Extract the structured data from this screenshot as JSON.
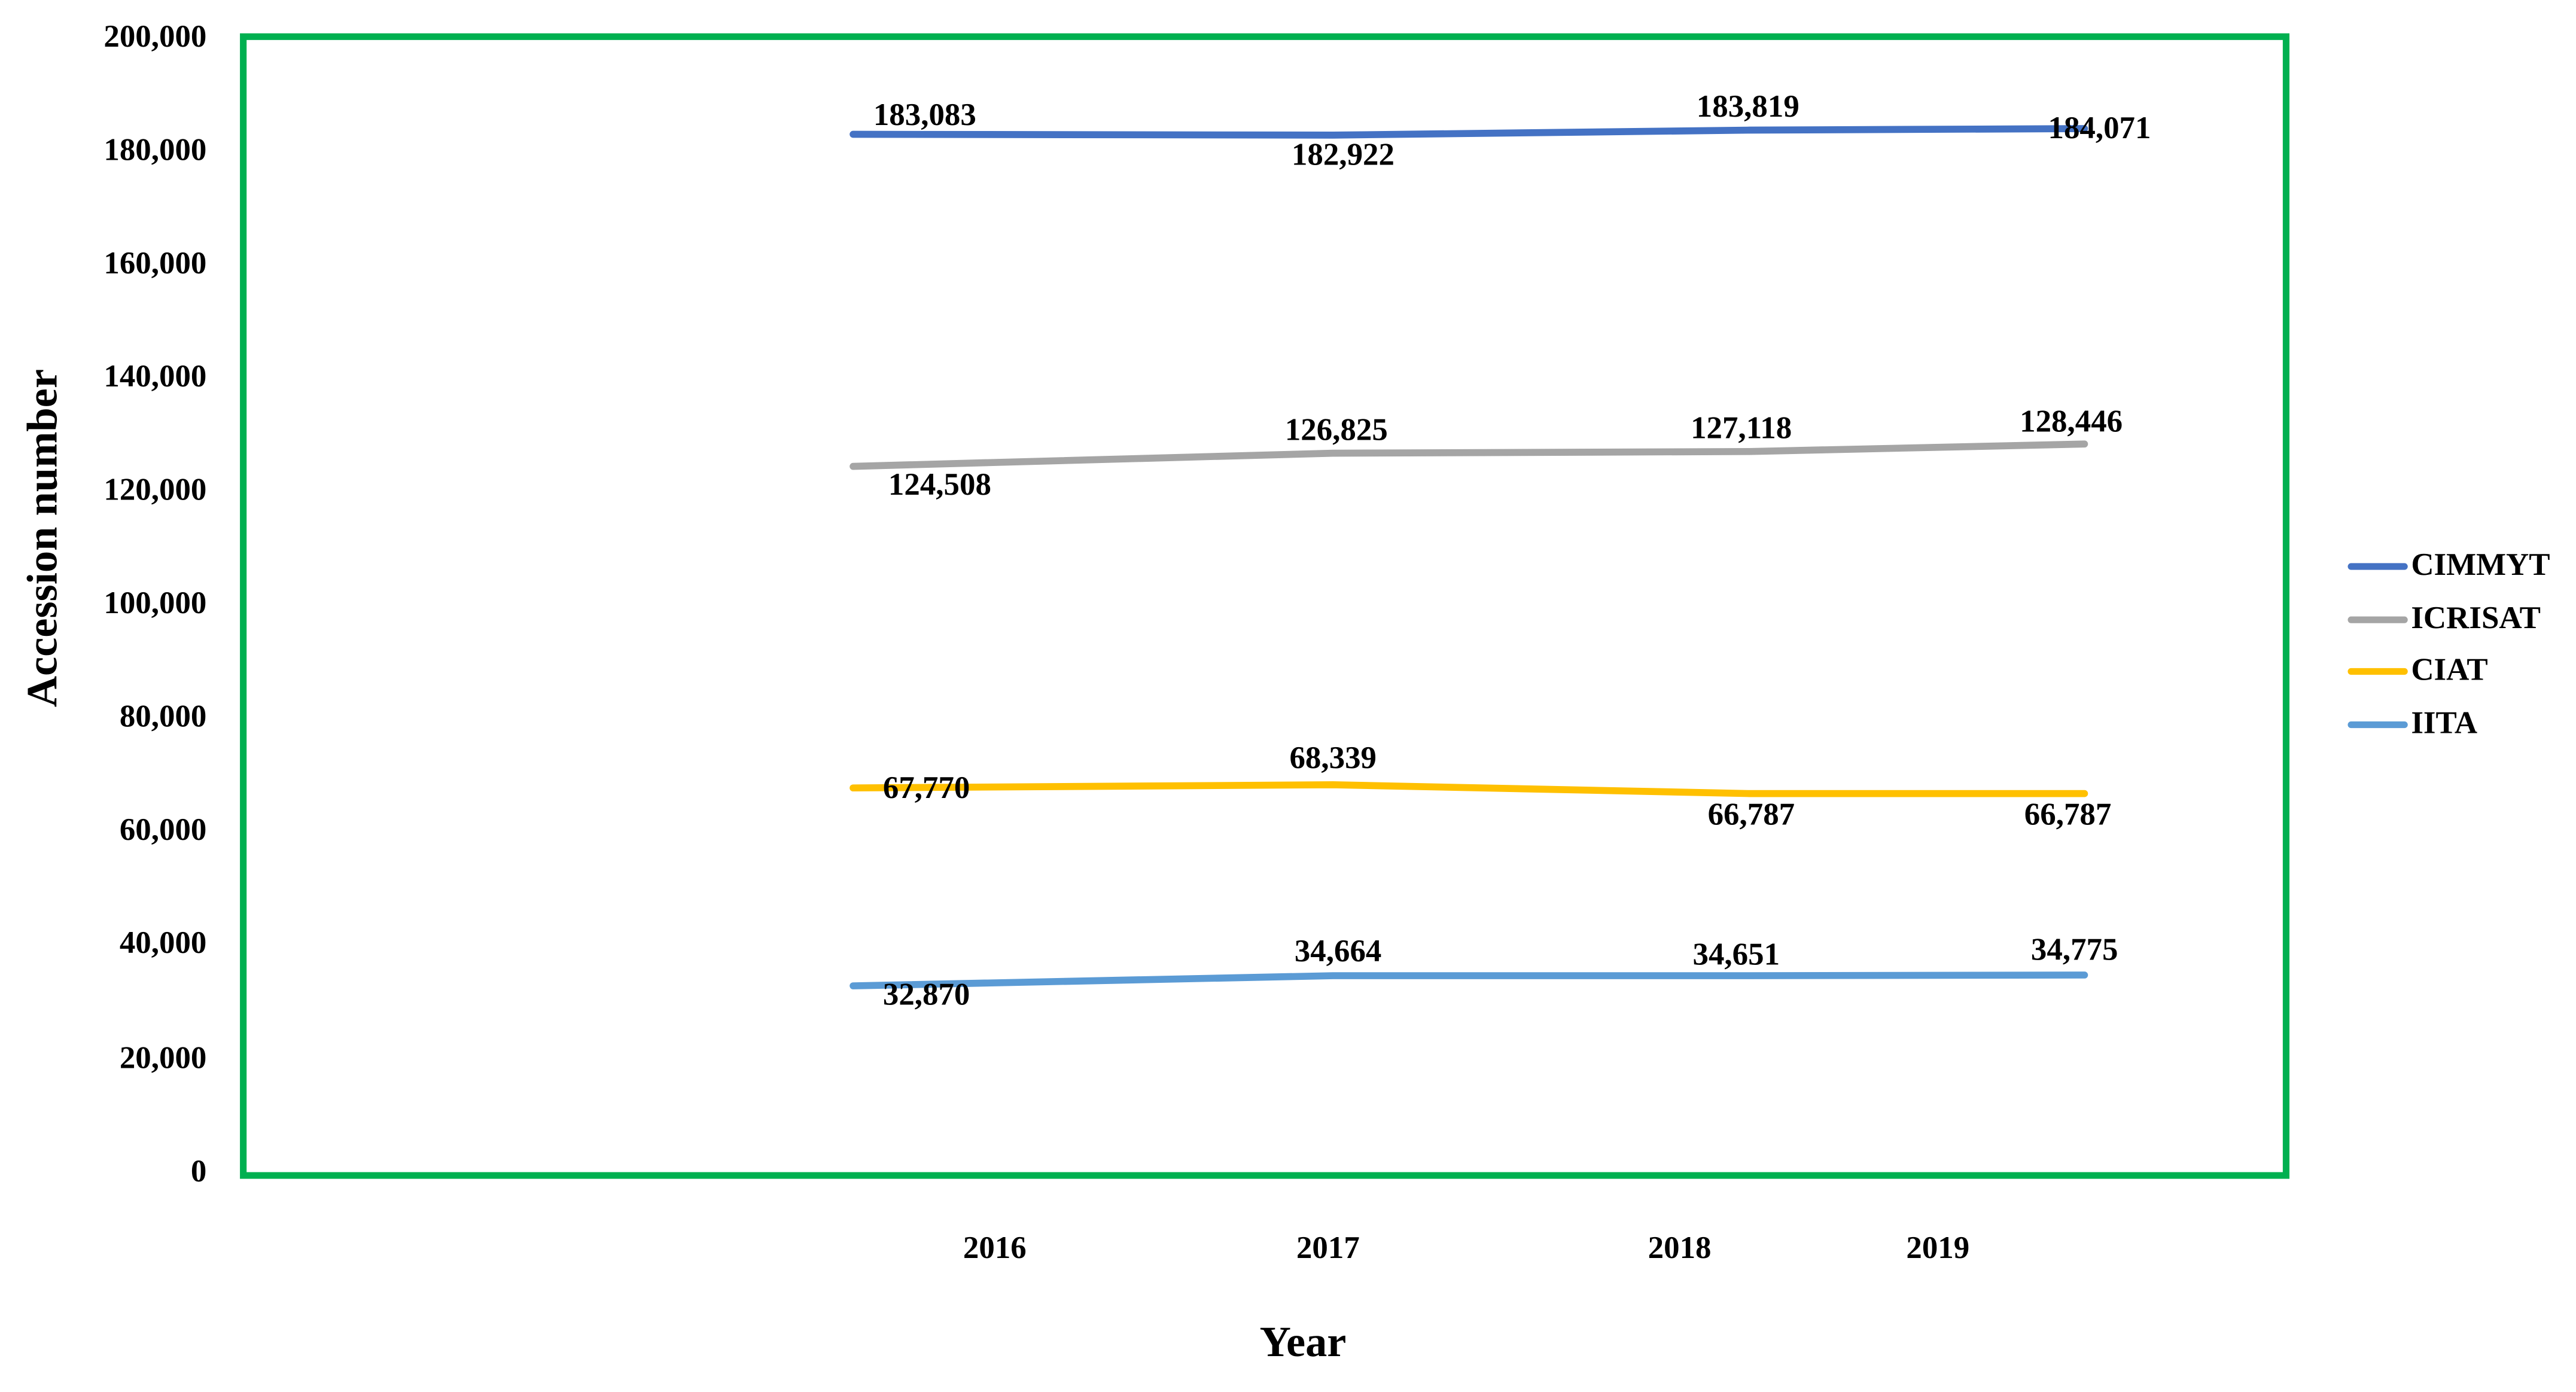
{
  "figure": {
    "background": "#ffffff",
    "plot_border_color": "#00B050"
  },
  "chart_data": {
    "type": "line",
    "categories": [
      "2016",
      "2017",
      "2018",
      "2019"
    ],
    "series": [
      {
        "name": "CIMMYT",
        "color": "#4472C4",
        "values": [
          183083,
          182922,
          183819,
          184071
        ]
      },
      {
        "name": "ICRISAT",
        "color": "#A5A5A5",
        "values": [
          124508,
          126825,
          127118,
          128446
        ]
      },
      {
        "name": "CIAT",
        "color": "#FFC000",
        "values": [
          67770,
          68339,
          66787,
          66787
        ]
      },
      {
        "name": "IITA",
        "color": "#5B9BD5",
        "values": [
          32870,
          34664,
          34651,
          34775
        ]
      }
    ],
    "xlabel": "Year",
    "ylabel": "Accession number",
    "ylim": [
      0,
      200000
    ],
    "ytick_step": 20000,
    "yticks": [
      "0",
      "20,000",
      "40,000",
      "60,000",
      "80,000",
      "100,000",
      "120,000",
      "140,000",
      "160,000",
      "180,000",
      "200,000"
    ],
    "grid": false,
    "legend_position": "right",
    "data_labels": true
  }
}
